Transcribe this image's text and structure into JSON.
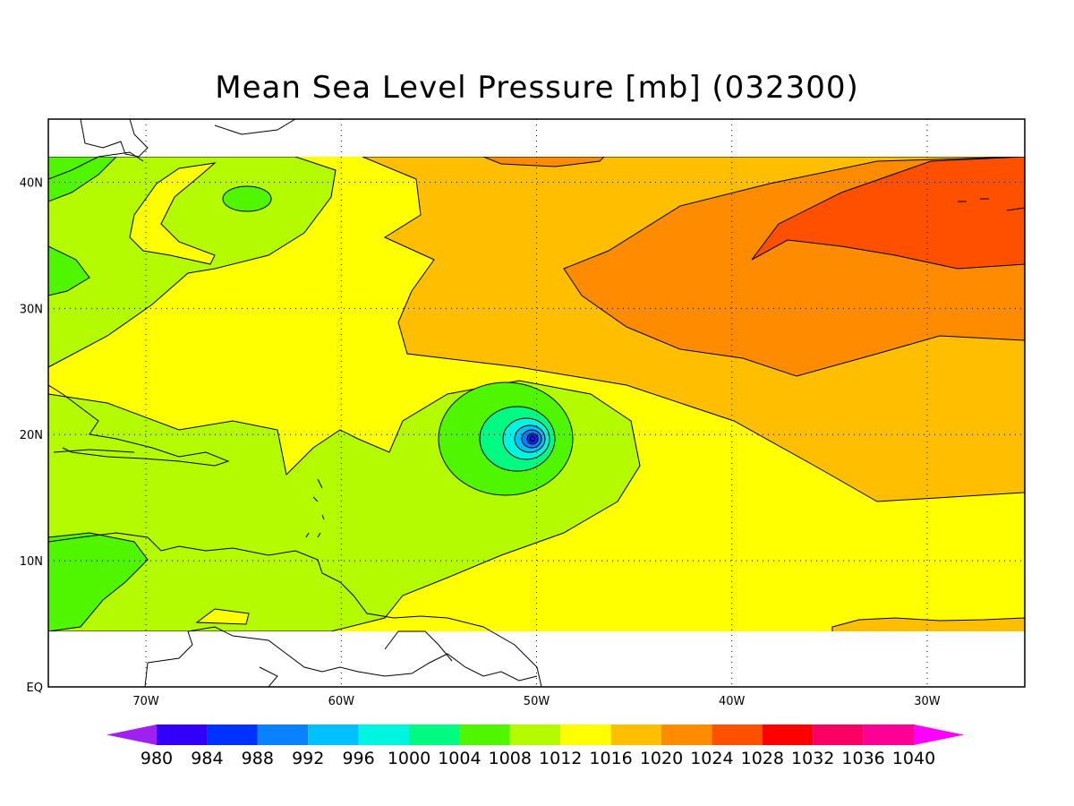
{
  "title": "Mean Sea Level Pressure [mb] (032300)",
  "map": {
    "lon_range": [
      -75,
      -25
    ],
    "lat_range": [
      0,
      45
    ],
    "lon_ticks": [
      {
        "value": -70,
        "label": "70W"
      },
      {
        "value": -60,
        "label": "60W"
      },
      {
        "value": -50,
        "label": "50W"
      },
      {
        "value": -40,
        "label": "40W"
      },
      {
        "value": -30,
        "label": "30W"
      }
    ],
    "lat_ticks": [
      {
        "value": 0,
        "label": "EQ"
      },
      {
        "value": 10,
        "label": "10N"
      },
      {
        "value": 20,
        "label": "20N"
      },
      {
        "value": 30,
        "label": "30N"
      },
      {
        "value": 40,
        "label": "40N"
      }
    ],
    "grid": true,
    "storm_center": {
      "lon": -50.4,
      "lat": 19.5
    }
  },
  "colorbar": {
    "levels": [
      "980",
      "984",
      "988",
      "992",
      "996",
      "1000",
      "1004",
      "1008",
      "1012",
      "1016",
      "1020",
      "1024",
      "1028",
      "1032",
      "1036",
      "1040"
    ],
    "colors": [
      "#a020f0",
      "#3200fa",
      "#0032ff",
      "#0a82ff",
      "#00c0ff",
      "#00f5e1",
      "#00fa82",
      "#50f500",
      "#b4fa00",
      "#ffff00",
      "#ffbe00",
      "#ff8c00",
      "#ff5000",
      "#ff0000",
      "#fa0064",
      "#ff0096",
      "#ff00ff"
    ]
  }
}
